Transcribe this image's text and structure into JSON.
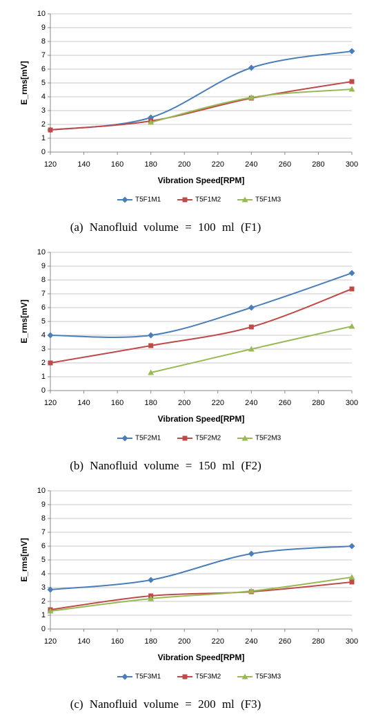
{
  "chart_data": [
    {
      "type": "line",
      "caption": "(a) Nanofluid volume = 100 ml (F1)",
      "xlabel": "Vibration Speed[RPM]",
      "ylabel": "E_rms[mV]",
      "x": [
        120,
        180,
        240,
        300
      ],
      "xlim": [
        120,
        300
      ],
      "xticks": [
        120,
        140,
        160,
        180,
        200,
        220,
        240,
        260,
        280,
        300
      ],
      "ylim": [
        0,
        10
      ],
      "yticks": [
        0,
        1,
        2,
        3,
        4,
        5,
        6,
        7,
        8,
        9,
        10
      ],
      "grid": true,
      "legend": "bottom",
      "series": [
        {
          "name": "T5F1M1",
          "color": "#4a7ebb",
          "marker": "diamond",
          "values": [
            1.6,
            2.5,
            6.1,
            7.3
          ]
        },
        {
          "name": "T5F1M2",
          "color": "#be4b48",
          "marker": "square",
          "values": [
            1.6,
            2.25,
            3.9,
            5.1
          ]
        },
        {
          "name": "T5F1M3",
          "color": "#98b954",
          "marker": "triangle",
          "values": [
            null,
            2.15,
            3.95,
            4.55
          ]
        }
      ]
    },
    {
      "type": "line",
      "caption": "(b) Nanofluid volume = 150 ml (F2)",
      "xlabel": "Vibration Speed[RPM]",
      "ylabel": "E_rms[mV]",
      "x": [
        120,
        180,
        240,
        300
      ],
      "xlim": [
        120,
        300
      ],
      "xticks": [
        120,
        140,
        160,
        180,
        200,
        220,
        240,
        260,
        280,
        300
      ],
      "ylim": [
        0,
        10
      ],
      "yticks": [
        0,
        1,
        2,
        3,
        4,
        5,
        6,
        7,
        8,
        9,
        10
      ],
      "grid": true,
      "legend": "bottom",
      "series": [
        {
          "name": "T5F2M1",
          "color": "#4a7ebb",
          "marker": "diamond",
          "values": [
            4.0,
            4.0,
            6.0,
            8.5
          ]
        },
        {
          "name": "T5F2M2",
          "color": "#be4b48",
          "marker": "square",
          "values": [
            2.0,
            3.25,
            4.6,
            7.35
          ]
        },
        {
          "name": "T5F2M3",
          "color": "#98b954",
          "marker": "triangle",
          "values": [
            null,
            1.3,
            3.0,
            4.65
          ]
        }
      ]
    },
    {
      "type": "line",
      "caption": "(c) Nanofluid volume = 200 ml (F3)",
      "xlabel": "Vibration Speed[RPM]",
      "ylabel": "E_rms[mV]",
      "x": [
        120,
        180,
        240,
        300
      ],
      "xlim": [
        120,
        300
      ],
      "xticks": [
        120,
        140,
        160,
        180,
        200,
        220,
        240,
        260,
        280,
        300
      ],
      "ylim": [
        0,
        10
      ],
      "yticks": [
        0,
        1,
        2,
        3,
        4,
        5,
        6,
        7,
        8,
        9,
        10
      ],
      "grid": true,
      "legend": "bottom",
      "series": [
        {
          "name": "T5F3M1",
          "color": "#4a7ebb",
          "marker": "diamond",
          "values": [
            2.85,
            3.55,
            5.45,
            6.0
          ]
        },
        {
          "name": "T5F3M2",
          "color": "#be4b48",
          "marker": "square",
          "values": [
            1.4,
            2.4,
            2.7,
            3.4
          ]
        },
        {
          "name": "T5F3M3",
          "color": "#98b954",
          "marker": "triangle",
          "values": [
            1.3,
            2.2,
            2.75,
            3.75
          ]
        }
      ]
    }
  ]
}
